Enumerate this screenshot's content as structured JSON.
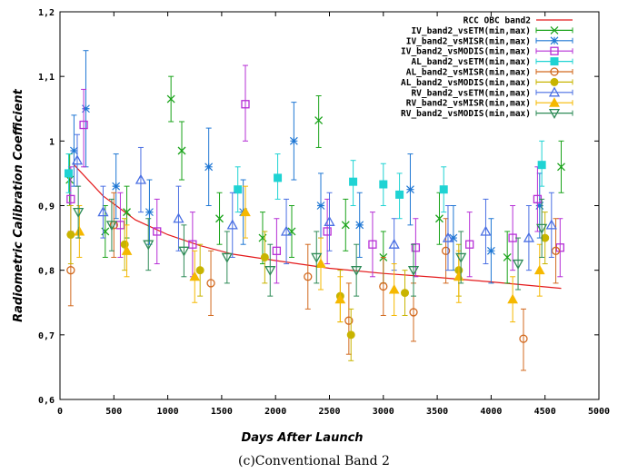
{
  "caption": "(c)Conventional Band 2",
  "chart_data": {
    "type": "scatter",
    "xlabel": "Days After Launch",
    "ylabel": "Radiometric Calibration Coefficient",
    "xlim": [
      0,
      5000
    ],
    "ylim": [
      0.6,
      1.2
    ],
    "x_ticks": [
      "0",
      "500",
      "1000",
      "1500",
      "2000",
      "2500",
      "3000",
      "3500",
      "4000",
      "4500",
      "5000"
    ],
    "y_ticks": [
      "0,6",
      "0,7",
      "0,8",
      "0,9",
      "1",
      "1,1",
      "1,2"
    ],
    "grid": false,
    "legend_position": "top-right",
    "series": [
      {
        "name": "RCC OBC band2",
        "kind": "line",
        "color": "#e41a1c",
        "points": [
          [
            120,
            0.965
          ],
          [
            400,
            0.915
          ],
          [
            700,
            0.878
          ],
          [
            1000,
            0.855
          ],
          [
            1300,
            0.838
          ],
          [
            1600,
            0.825
          ],
          [
            2000,
            0.815
          ],
          [
            2500,
            0.803
          ],
          [
            3000,
            0.795
          ],
          [
            3500,
            0.789
          ],
          [
            4000,
            0.782
          ],
          [
            4650,
            0.772
          ]
        ]
      },
      {
        "name": "IV_band2_vsETM(min,max)",
        "kind": "errorbar",
        "marker": "x",
        "color": "#1aa31a",
        "points": [
          [
            90,
            0.94,
            0.9,
            0.98
          ],
          [
            420,
            0.86,
            0.82,
            0.9
          ],
          [
            620,
            0.89,
            0.85,
            0.93
          ],
          [
            1030,
            1.065,
            1.03,
            1.1
          ],
          [
            1130,
            0.985,
            0.94,
            1.03
          ],
          [
            1480,
            0.88,
            0.84,
            0.92
          ],
          [
            1880,
            0.85,
            0.81,
            0.89
          ],
          [
            2150,
            0.86,
            0.82,
            0.9
          ],
          [
            2400,
            1.032,
            0.99,
            1.07
          ],
          [
            2650,
            0.87,
            0.83,
            0.91
          ],
          [
            3000,
            0.82,
            0.78,
            0.86
          ],
          [
            3520,
            0.88,
            0.84,
            0.92
          ],
          [
            4150,
            0.82,
            0.78,
            0.86
          ],
          [
            4650,
            0.96,
            0.92,
            1.0
          ]
        ]
      },
      {
        "name": "IV_band2_vsMISR(min,max)",
        "kind": "errorbar",
        "marker": "star",
        "color": "#1f77d4",
        "points": [
          [
            130,
            0.985,
            0.93,
            1.04
          ],
          [
            240,
            1.05,
            0.96,
            1.14
          ],
          [
            520,
            0.93,
            0.88,
            0.98
          ],
          [
            830,
            0.89,
            0.84,
            0.94
          ],
          [
            1380,
            0.96,
            0.9,
            1.02
          ],
          [
            1700,
            0.89,
            0.84,
            0.94
          ],
          [
            2170,
            1.0,
            0.94,
            1.06
          ],
          [
            2420,
            0.9,
            0.85,
            0.95
          ],
          [
            2780,
            0.87,
            0.82,
            0.92
          ],
          [
            3250,
            0.925,
            0.87,
            0.98
          ],
          [
            3650,
            0.85,
            0.8,
            0.9
          ],
          [
            4000,
            0.83,
            0.78,
            0.88
          ],
          [
            4450,
            0.9,
            0.85,
            0.95
          ]
        ]
      },
      {
        "name": "IV_band2_vsMODIS(min,max)",
        "kind": "errorbar",
        "marker": "square",
        "color": "#b62fd6",
        "points": [
          [
            100,
            0.91,
            0.86,
            0.96
          ],
          [
            220,
            1.025,
            0.96,
            1.08
          ],
          [
            560,
            0.87,
            0.82,
            0.92
          ],
          [
            900,
            0.86,
            0.81,
            0.91
          ],
          [
            1230,
            0.84,
            0.79,
            0.89
          ],
          [
            1720,
            1.057,
            1.0,
            1.117
          ],
          [
            2010,
            0.83,
            0.78,
            0.88
          ],
          [
            2480,
            0.86,
            0.81,
            0.91
          ],
          [
            2900,
            0.84,
            0.79,
            0.89
          ],
          [
            3300,
            0.835,
            0.79,
            0.88
          ],
          [
            3800,
            0.84,
            0.79,
            0.89
          ],
          [
            4200,
            0.85,
            0.8,
            0.9
          ],
          [
            4430,
            0.91,
            0.86,
            0.96
          ],
          [
            4640,
            0.835,
            0.79,
            0.88
          ]
        ]
      },
      {
        "name": "AL_band2_vsETM(min,max)",
        "kind": "errorbar",
        "marker": "filled-square",
        "color": "#1fd3d3",
        "points": [
          [
            80,
            0.95,
            0.92,
            0.98
          ],
          [
            1650,
            0.925,
            0.89,
            0.96
          ],
          [
            2020,
            0.943,
            0.91,
            0.98
          ],
          [
            2720,
            0.937,
            0.9,
            0.97
          ],
          [
            3000,
            0.933,
            0.9,
            0.965
          ],
          [
            3150,
            0.917,
            0.88,
            0.95
          ],
          [
            3560,
            0.925,
            0.89,
            0.96
          ],
          [
            4470,
            0.963,
            0.93,
            1.0
          ]
        ]
      },
      {
        "name": "AL_band2_vsMISR(min,max)",
        "kind": "errorbar",
        "marker": "circle",
        "color": "#d2691e",
        "points": [
          [
            100,
            0.8,
            0.745,
            0.86
          ],
          [
            500,
            0.87,
            0.82,
            0.92
          ],
          [
            1400,
            0.78,
            0.73,
            0.83
          ],
          [
            2300,
            0.79,
            0.74,
            0.84
          ],
          [
            2680,
            0.722,
            0.67,
            0.78
          ],
          [
            3000,
            0.775,
            0.73,
            0.82
          ],
          [
            3280,
            0.735,
            0.69,
            0.78
          ],
          [
            3580,
            0.83,
            0.78,
            0.88
          ],
          [
            4300,
            0.694,
            0.645,
            0.74
          ],
          [
            4600,
            0.83,
            0.78,
            0.88
          ]
        ]
      },
      {
        "name": "AL_band2_vsMODIS(min,max)",
        "kind": "errorbar",
        "marker": "filled-circle",
        "color": "#c8b400",
        "points": [
          [
            100,
            0.855,
            0.81,
            0.9
          ],
          [
            600,
            0.84,
            0.8,
            0.88
          ],
          [
            1300,
            0.8,
            0.76,
            0.84
          ],
          [
            1900,
            0.82,
            0.78,
            0.86
          ],
          [
            2600,
            0.76,
            0.72,
            0.8
          ],
          [
            2700,
            0.7,
            0.66,
            0.74
          ],
          [
            3200,
            0.765,
            0.73,
            0.8
          ],
          [
            3700,
            0.8,
            0.76,
            0.84
          ],
          [
            4500,
            0.85,
            0.81,
            0.89
          ]
        ]
      },
      {
        "name": "RV_band2_vsETM(min,max)",
        "kind": "errorbar",
        "marker": "triangle",
        "color": "#4a6fe3",
        "points": [
          [
            160,
            0.97,
            0.93,
            1.01
          ],
          [
            400,
            0.89,
            0.85,
            0.93
          ],
          [
            750,
            0.94,
            0.89,
            0.99
          ],
          [
            1100,
            0.88,
            0.83,
            0.93
          ],
          [
            1600,
            0.87,
            0.82,
            0.92
          ],
          [
            2100,
            0.86,
            0.81,
            0.91
          ],
          [
            2500,
            0.875,
            0.83,
            0.92
          ],
          [
            3100,
            0.84,
            0.8,
            0.88
          ],
          [
            3600,
            0.85,
            0.8,
            0.9
          ],
          [
            3950,
            0.86,
            0.81,
            0.91
          ],
          [
            4350,
            0.85,
            0.8,
            0.9
          ],
          [
            4560,
            0.87,
            0.82,
            0.92
          ]
        ]
      },
      {
        "name": "RV_band2_vsMISR(min,max)",
        "kind": "errorbar",
        "marker": "filled-triangle",
        "color": "#f5b800",
        "points": [
          [
            180,
            0.86,
            0.82,
            0.9
          ],
          [
            620,
            0.83,
            0.79,
            0.87
          ],
          [
            1250,
            0.79,
            0.75,
            0.83
          ],
          [
            1720,
            0.89,
            0.85,
            0.93
          ],
          [
            2420,
            0.81,
            0.77,
            0.85
          ],
          [
            2600,
            0.755,
            0.72,
            0.79
          ],
          [
            3100,
            0.77,
            0.73,
            0.81
          ],
          [
            3700,
            0.79,
            0.75,
            0.83
          ],
          [
            4200,
            0.755,
            0.72,
            0.79
          ],
          [
            4450,
            0.8,
            0.76,
            0.84
          ]
        ]
      },
      {
        "name": "RV_band2_vsMODIS(min,max)",
        "kind": "errorbar",
        "marker": "down-triangle",
        "color": "#2e8b57",
        "points": [
          [
            170,
            0.89,
            0.85,
            0.93
          ],
          [
            480,
            0.87,
            0.83,
            0.91
          ],
          [
            820,
            0.84,
            0.8,
            0.88
          ],
          [
            1150,
            0.83,
            0.79,
            0.87
          ],
          [
            1550,
            0.82,
            0.78,
            0.86
          ],
          [
            1950,
            0.8,
            0.76,
            0.84
          ],
          [
            2380,
            0.82,
            0.78,
            0.86
          ],
          [
            2750,
            0.8,
            0.76,
            0.84
          ],
          [
            3280,
            0.8,
            0.76,
            0.84
          ],
          [
            3720,
            0.82,
            0.78,
            0.86
          ],
          [
            4250,
            0.81,
            0.77,
            0.85
          ],
          [
            4470,
            0.865,
            0.82,
            0.91
          ]
        ]
      }
    ]
  }
}
